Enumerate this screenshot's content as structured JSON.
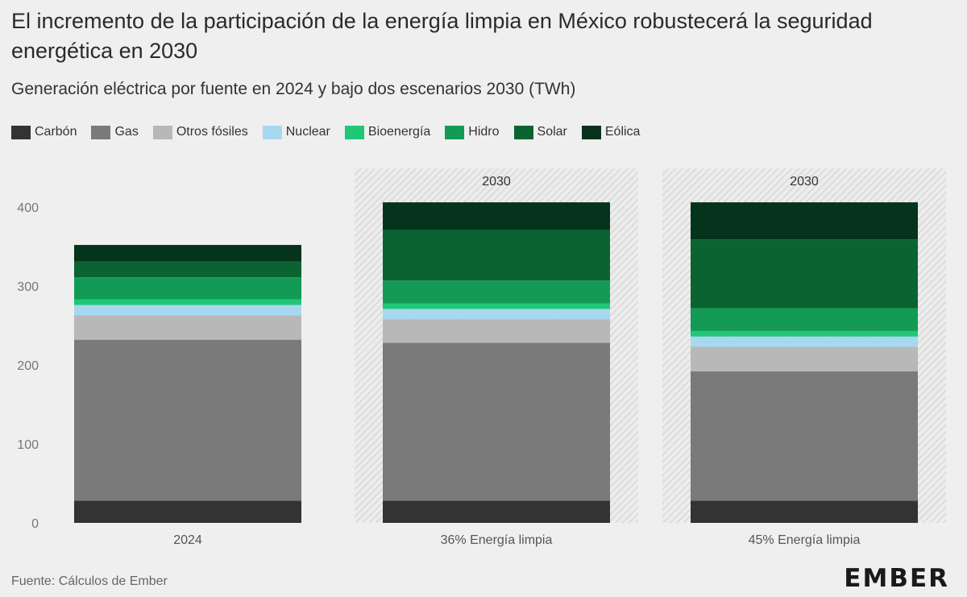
{
  "title": "El incremento de la participación de la energía limpia en México robustecerá la seguridad energética en 2030",
  "subtitle": "Generación eléctrica por fuente en 2024 y bajo dos escenarios 2030 (TWh)",
  "source": "Fuente: Cálculos de Ember",
  "logo": "EMBER",
  "chart_data": {
    "type": "bar",
    "stacked": true,
    "unit": "TWh",
    "categories": [
      "2024",
      "36% Energía limpia",
      "45% Energía limpia"
    ],
    "panel_labels": [
      "",
      "2030",
      "2030"
    ],
    "ylim": [
      0,
      420
    ],
    "yticks": [
      0,
      100,
      200,
      300,
      400
    ],
    "grid": false,
    "legend_position": "top-left",
    "series": [
      {
        "name": "Carbón",
        "color": "#333333",
        "values": [
          28,
          28,
          28
        ]
      },
      {
        "name": "Gas",
        "color": "#7a7a7a",
        "values": [
          204,
          200,
          164
        ]
      },
      {
        "name": "Otros fósiles",
        "color": "#b8b8b8",
        "values": [
          31,
          30,
          31
        ]
      },
      {
        "name": "Nuclear",
        "color": "#a8d8f0",
        "values": [
          13,
          13,
          13
        ]
      },
      {
        "name": "Bioenergía",
        "color": "#20c777",
        "values": [
          7,
          7,
          7
        ]
      },
      {
        "name": "Hidro",
        "color": "#139a55",
        "values": [
          28,
          29,
          29
        ]
      },
      {
        "name": "Solar",
        "color": "#0b6332",
        "values": [
          20,
          64,
          87
        ]
      },
      {
        "name": "Eólica",
        "color": "#05331b",
        "values": [
          21,
          35,
          47
        ]
      }
    ]
  }
}
